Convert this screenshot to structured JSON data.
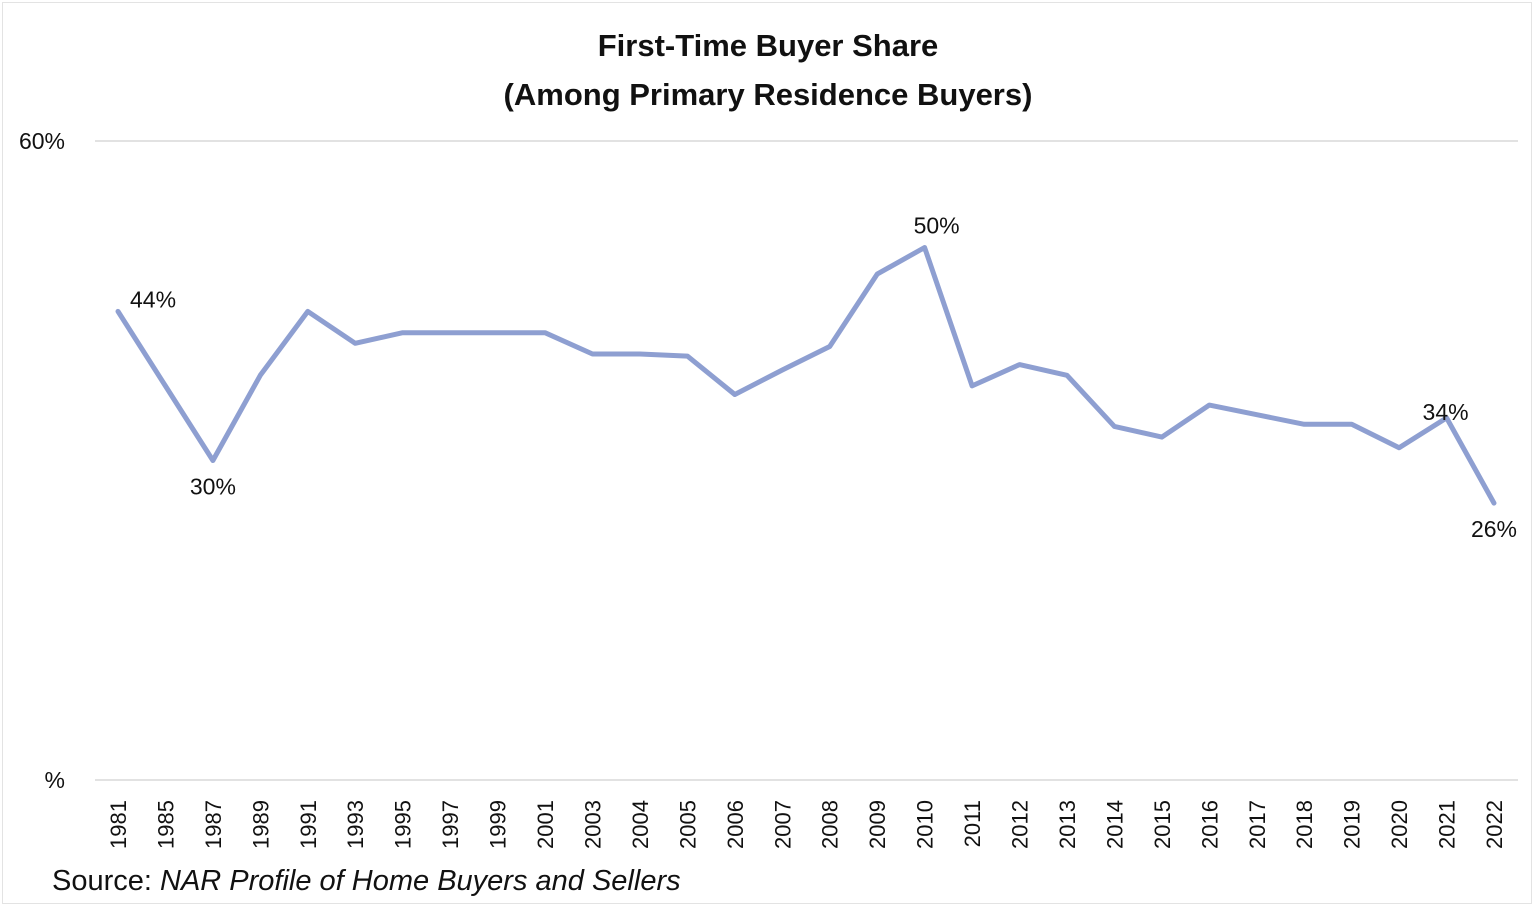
{
  "chart_data": {
    "type": "line",
    "title": [
      "First-Time Buyer Share",
      "(Among Primary Residence Buyers)"
    ],
    "xlabel": "",
    "ylabel": "",
    "yticks": [
      "60%",
      "%"
    ],
    "ylim": [
      0,
      60
    ],
    "categories": [
      "1981",
      "1985",
      "1987",
      "1989",
      "1991",
      "1993",
      "1995",
      "1997",
      "1999",
      "2001",
      "2003",
      "2004",
      "2005",
      "2006",
      "2007",
      "2008",
      "2009",
      "2010",
      "2011",
      "2012",
      "2013",
      "2014",
      "2015",
      "2016",
      "2017",
      "2018",
      "2019",
      "2020",
      "2021",
      "2022"
    ],
    "series": [
      {
        "color": "#8e9fd1",
        "values": [
          44,
          37,
          30,
          38,
          44,
          41,
          42,
          42,
          42,
          42,
          40,
          40,
          39.8,
          36.2,
          38.5,
          40.7,
          47.5,
          50,
          37,
          39,
          38,
          33.2,
          32.2,
          35.2,
          34.3,
          33.4,
          33.4,
          31.2,
          34,
          26
        ]
      }
    ],
    "annotations": [
      {
        "index": 0,
        "text": "44%",
        "position": "right-above"
      },
      {
        "index": 2,
        "text": "30%",
        "position": "below"
      },
      {
        "index": 17,
        "text": "50%",
        "position": "above"
      },
      {
        "index": 28,
        "text": "34%",
        "position": "right"
      },
      {
        "index": 29,
        "text": "26%",
        "position": "below"
      }
    ],
    "grid": true,
    "legend": "none",
    "source_prefix": "Source: ",
    "source_text": "NAR Profile of Home Buyers and Sellers"
  }
}
